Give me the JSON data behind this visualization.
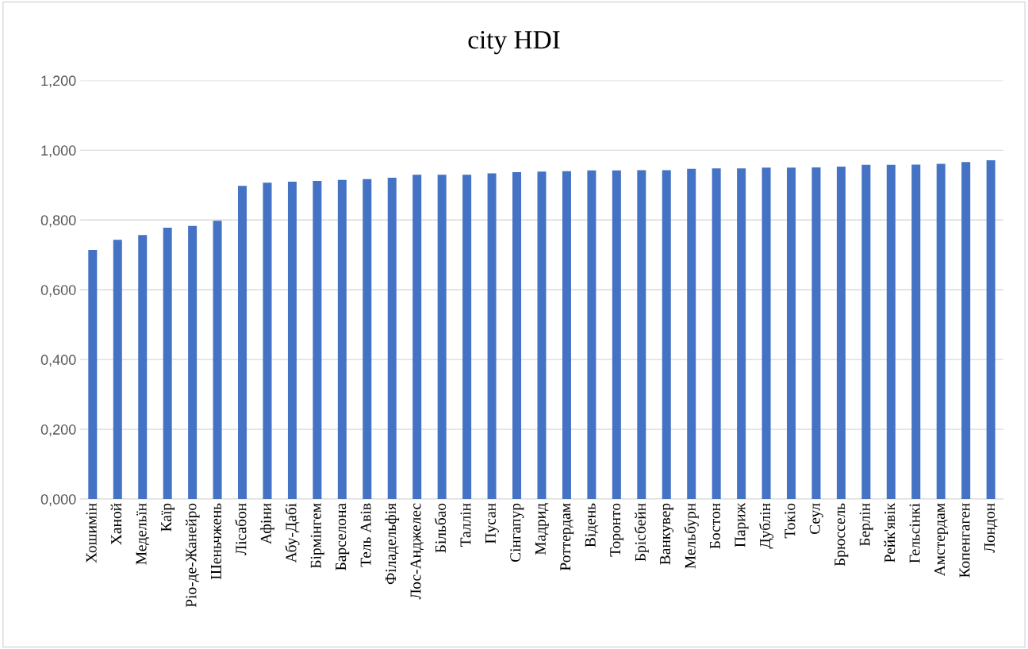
{
  "chart_data": {
    "type": "bar",
    "title": "city HDI",
    "categories": [
      "Хошимін",
      "Ханой",
      "Медельїн",
      "Каїр",
      "Ріо-де-Жанейро",
      "Шеньчжень",
      "Лісабон",
      "Афіни",
      "Абу-Дабі",
      "Бірмінгем",
      "Барселона",
      "Тель Авів",
      "Філадельфія",
      "Лос-Анджелес",
      "Більбао",
      "Таллін",
      "Пусан",
      "Сінгапур",
      "Мадрид",
      "Роттердам",
      "Відень",
      "Торонто",
      "Брісбейн",
      "Ванкувер",
      "Мельбурн",
      "Бостон",
      "Париж",
      "Дублін",
      "Токіо",
      "Сеул",
      "Брюссель",
      "Берлін",
      "Рейк'явік",
      "Гельсінкі",
      "Амстердам",
      "Копенгаген",
      "Лондон"
    ],
    "values": [
      0.714,
      0.743,
      0.757,
      0.778,
      0.783,
      0.798,
      0.898,
      0.907,
      0.91,
      0.912,
      0.915,
      0.917,
      0.921,
      0.93,
      0.93,
      0.93,
      0.934,
      0.937,
      0.939,
      0.94,
      0.942,
      0.942,
      0.943,
      0.943,
      0.947,
      0.948,
      0.948,
      0.95,
      0.95,
      0.951,
      0.953,
      0.958,
      0.958,
      0.959,
      0.961,
      0.966,
      0.971
    ],
    "color": "#4472c4",
    "ylim": [
      0,
      1.2
    ],
    "yticks": [
      {
        "value": 0,
        "label": "0,000"
      },
      {
        "value": 0.2,
        "label": "0,200"
      },
      {
        "value": 0.4,
        "label": "0,400"
      },
      {
        "value": 0.6,
        "label": "0,600"
      },
      {
        "value": 0.8,
        "label": "0,800"
      },
      {
        "value": 1.0,
        "label": "1,000"
      },
      {
        "value": 1.2,
        "label": "1,200"
      }
    ],
    "grid": "y"
  }
}
